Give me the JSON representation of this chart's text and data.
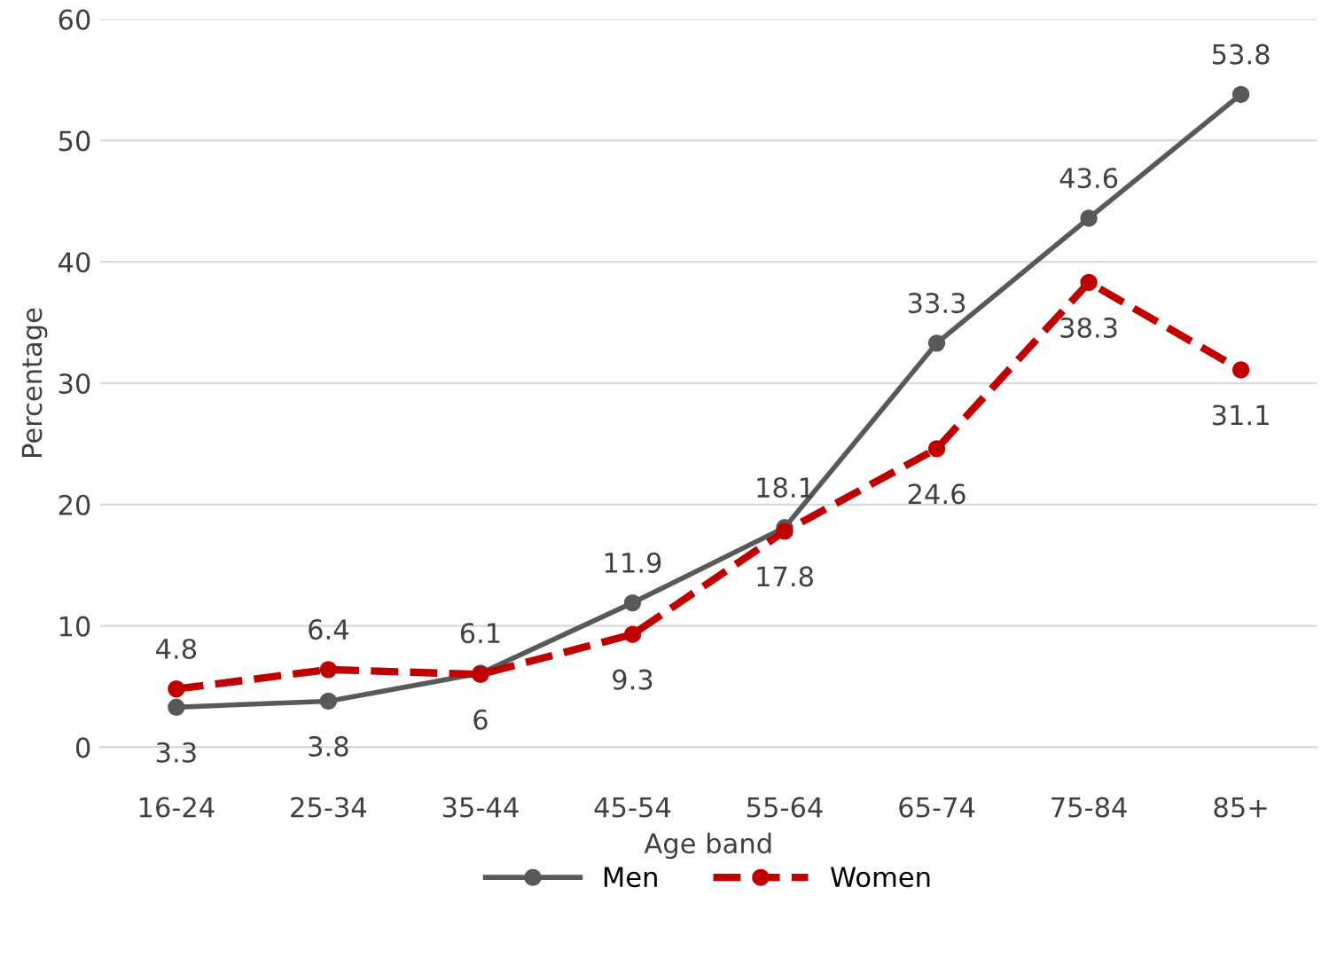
{
  "chart_data": {
    "type": "line",
    "xlabel": "Age band",
    "ylabel": "Percentage",
    "categories": [
      "16-24",
      "25-34",
      "35-44",
      "45-54",
      "55-64",
      "65-74",
      "75-84",
      "85+"
    ],
    "series": [
      {
        "name": "Men",
        "color": "#595959",
        "line_style": "solid",
        "marker": "circle",
        "values": [
          3.3,
          3.8,
          6.1,
          11.9,
          18.1,
          33.3,
          43.6,
          53.8
        ]
      },
      {
        "name": "Women",
        "color": "#c00000",
        "line_style": "dashed",
        "marker": "circle",
        "values": [
          4.8,
          6.4,
          6,
          9.3,
          17.8,
          24.6,
          38.3,
          31.1
        ]
      }
    ],
    "ylim": [
      0,
      60
    ],
    "yticks": [
      0,
      10,
      20,
      30,
      40,
      50,
      60
    ],
    "grid": "y",
    "legend": "bottom",
    "data_labels": true
  }
}
